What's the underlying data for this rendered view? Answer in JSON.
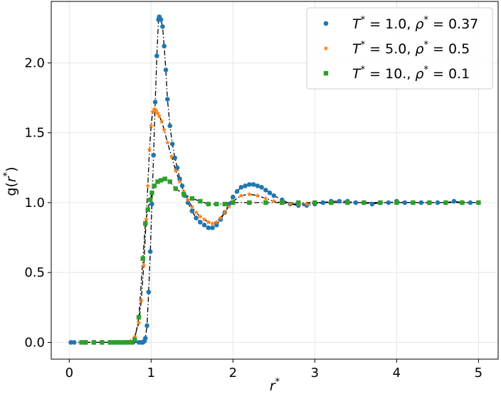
{
  "chart_data": {
    "type": "scatter",
    "xlabel": "r*",
    "ylabel": "g(r*)",
    "xlim": [
      -0.22,
      5.24
    ],
    "ylim": [
      -0.12,
      2.44
    ],
    "xticks": [
      0,
      1,
      2,
      3,
      4,
      5
    ],
    "yticks": [
      0.0,
      0.5,
      1.0,
      1.5,
      2.0
    ],
    "xtick_labels": [
      "0",
      "1",
      "2",
      "3",
      "4",
      "5"
    ],
    "ytick_labels": [
      "0.0",
      "0.5",
      "1.0",
      "1.5",
      "2.0"
    ],
    "grid": true,
    "legend_position": "top-right",
    "series": [
      {
        "name": "T* = 1.0, ρ* = 0.37",
        "label_parts": {
          "t_value": "1.0",
          "rho_value": "0.37"
        },
        "color": "#1f77b4",
        "marker": "circle",
        "x": [
          0.02,
          0.06,
          0.2,
          0.3,
          0.4,
          0.5,
          0.6,
          0.7,
          0.78,
          0.85,
          0.88,
          0.9,
          0.92,
          0.93,
          0.95,
          0.97,
          0.99,
          1.01,
          1.03,
          1.05,
          1.07,
          1.09,
          1.1,
          1.12,
          1.14,
          1.16,
          1.18,
          1.2,
          1.23,
          1.26,
          1.29,
          1.32,
          1.35,
          1.38,
          1.41,
          1.45,
          1.5,
          1.55,
          1.6,
          1.65,
          1.7,
          1.75,
          1.8,
          1.85,
          1.9,
          1.95,
          2.0,
          2.05,
          2.1,
          2.15,
          2.2,
          2.25,
          2.3,
          2.35,
          2.4,
          2.45,
          2.5,
          2.6,
          2.7,
          2.8,
          2.9,
          3.0,
          3.1,
          3.2,
          3.3,
          3.4,
          3.5,
          3.6,
          3.7,
          3.8,
          3.9,
          4.0,
          4.1,
          4.2,
          4.3,
          4.4,
          4.5,
          4.6,
          4.7,
          4.8,
          4.9,
          5.0
        ],
        "y": [
          0.0,
          0.0,
          0.0,
          0.0,
          0.0,
          0.0,
          0.0,
          0.0,
          0.0,
          0.0,
          0.0,
          0.0,
          0.01,
          0.03,
          0.12,
          0.36,
          0.65,
          0.99,
          1.34,
          1.72,
          2.05,
          2.31,
          2.33,
          2.31,
          2.26,
          2.12,
          1.95,
          1.74,
          1.55,
          1.42,
          1.32,
          1.25,
          1.17,
          1.12,
          1.05,
          1.0,
          0.94,
          0.89,
          0.86,
          0.84,
          0.82,
          0.82,
          0.84,
          0.88,
          0.93,
          0.99,
          1.04,
          1.08,
          1.11,
          1.12,
          1.13,
          1.13,
          1.12,
          1.11,
          1.09,
          1.07,
          1.05,
          1.02,
          0.99,
          0.98,
          0.98,
          0.99,
          1.0,
          1.01,
          1.01,
          1.01,
          1.0,
          1.0,
          0.99,
          1.0,
          1.0,
          1.01,
          1.0,
          1.0,
          1.0,
          1.0,
          1.0,
          1.0,
          1.01,
          1.0,
          1.0,
          1.0
        ]
      },
      {
        "name": "T* = 5.0, ρ* = 0.5",
        "label_parts": {
          "t_value": "5.0",
          "rho_value": "0.5"
        },
        "color": "#ff7f0e",
        "marker": "star",
        "x": [
          0.2,
          0.3,
          0.4,
          0.5,
          0.6,
          0.7,
          0.75,
          0.8,
          0.85,
          0.88,
          0.91,
          0.94,
          0.96,
          0.98,
          1.0,
          1.02,
          1.04,
          1.06,
          1.08,
          1.1,
          1.13,
          1.16,
          1.2,
          1.25,
          1.3,
          1.35,
          1.4,
          1.45,
          1.5,
          1.55,
          1.6,
          1.65,
          1.7,
          1.75,
          1.8,
          1.85,
          1.9,
          1.95,
          2.0,
          2.1,
          2.2,
          2.3,
          2.4,
          2.5,
          2.6,
          2.7,
          2.8,
          2.9,
          3.0,
          3.2,
          3.4,
          3.6,
          3.8,
          4.0,
          4.2,
          4.4,
          4.6,
          4.8,
          5.0
        ],
        "y": [
          0.0,
          0.0,
          0.0,
          0.0,
          0.0,
          0.0,
          0.01,
          0.04,
          0.14,
          0.3,
          0.55,
          0.88,
          1.12,
          1.38,
          1.55,
          1.65,
          1.67,
          1.66,
          1.64,
          1.62,
          1.58,
          1.52,
          1.43,
          1.33,
          1.23,
          1.15,
          1.08,
          1.02,
          0.97,
          0.93,
          0.9,
          0.88,
          0.86,
          0.85,
          0.86,
          0.89,
          0.93,
          0.97,
          1.01,
          1.05,
          1.06,
          1.05,
          1.03,
          1.01,
          1.0,
          0.99,
          0.99,
          0.99,
          1.0,
          1.0,
          1.0,
          1.0,
          1.0,
          1.0,
          1.0,
          1.0,
          1.0,
          1.0,
          1.0
        ]
      },
      {
        "name": "T* = 10., ρ* = 0.1",
        "label_parts": {
          "t_value": "10.",
          "rho_value": "0.1"
        },
        "color": "#2ca02c",
        "marker": "square",
        "x": [
          0.15,
          0.2,
          0.3,
          0.4,
          0.5,
          0.55,
          0.6,
          0.65,
          0.7,
          0.75,
          0.8,
          0.85,
          0.9,
          0.93,
          0.96,
          0.99,
          1.01,
          1.04,
          1.08,
          1.12,
          1.17,
          1.23,
          1.3,
          1.4,
          1.5,
          1.6,
          1.7,
          1.8,
          1.9,
          2.0,
          2.2,
          2.4,
          2.6,
          2.8,
          3.0,
          3.2,
          3.4,
          3.6,
          3.8,
          4.0,
          4.2,
          4.4,
          4.6,
          4.8,
          5.0
        ],
        "y": [
          0.0,
          0.0,
          0.0,
          0.0,
          0.0,
          0.0,
          0.0,
          0.0,
          0.0,
          0.0,
          0.02,
          0.18,
          0.6,
          0.85,
          0.95,
          1.02,
          1.07,
          1.12,
          1.15,
          1.16,
          1.17,
          1.15,
          1.1,
          1.06,
          1.03,
          1.01,
          0.99,
          0.99,
          0.99,
          1.0,
          1.0,
          1.0,
          1.0,
          1.0,
          1.0,
          1.0,
          1.0,
          1.0,
          1.0,
          1.0,
          1.0,
          1.0,
          1.0,
          1.0,
          1.0
        ]
      }
    ]
  }
}
